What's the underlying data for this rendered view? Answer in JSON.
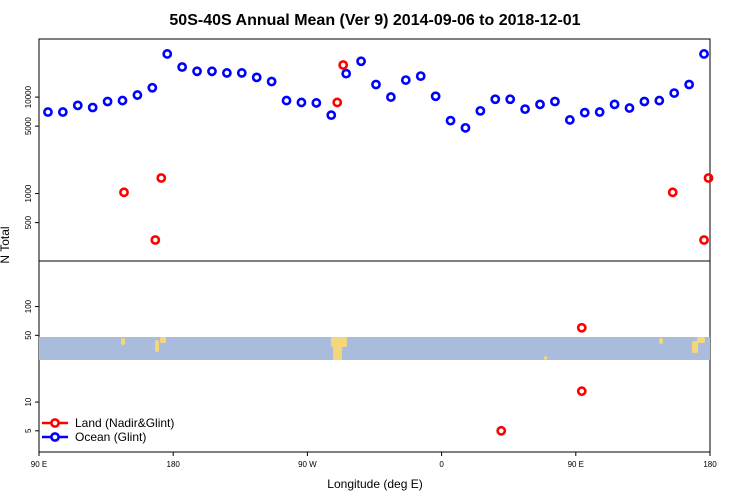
{
  "chart_data": {
    "type": "scatter",
    "title": "50S-40S Annual Mean (Ver 9)   2014-09-06 to 2018-12-01",
    "xlabel": "Longitude (deg E)",
    "ylabel": "N Total",
    "y_scale": "log",
    "grid": false,
    "legend_position": "bottom-left",
    "x_ticks": [
      {
        "value": 90,
        "label": "90 E"
      },
      {
        "value": 180,
        "label": "180"
      },
      {
        "value": 270,
        "label": "90 W"
      },
      {
        "value": 360,
        "label": "0"
      },
      {
        "value": 450,
        "label": "90 E"
      },
      {
        "value": 540,
        "label": "180"
      }
    ],
    "xlim": [
      90,
      540
    ],
    "panels": [
      {
        "name": "upper",
        "ylim": [
          200,
          40000
        ],
        "y_ticks": [
          {
            "value": 500,
            "label": "500"
          },
          {
            "value": 1000,
            "label": "1000"
          },
          {
            "value": 5000,
            "label": "5000"
          },
          {
            "value": 10000,
            "label": "10000"
          }
        ],
        "series": [
          {
            "name": "Ocean (Glint)",
            "color": "#0000ff",
            "points": [
              [
                96,
                7000
              ],
              [
                106,
                7000
              ],
              [
                116,
                8200
              ],
              [
                126,
                7800
              ],
              [
                136,
                9000
              ],
              [
                146,
                9200
              ],
              [
                156,
                10500
              ],
              [
                166,
                12500
              ],
              [
                176,
                28000
              ],
              [
                186,
                20500
              ],
              [
                196,
                18500
              ],
              [
                206,
                18500
              ],
              [
                216,
                17800
              ],
              [
                226,
                17800
              ],
              [
                236,
                16000
              ],
              [
                246,
                14500
              ],
              [
                256,
                9200
              ],
              [
                266,
                8800
              ],
              [
                276,
                8700
              ],
              [
                286,
                6500
              ],
              [
                296,
                17500
              ],
              [
                306,
                23500
              ],
              [
                316,
                13500
              ],
              [
                326,
                10000
              ],
              [
                336,
                15000
              ],
              [
                346,
                16500
              ],
              [
                356,
                10200
              ],
              [
                366,
                5700
              ],
              [
                376,
                4800
              ],
              [
                386,
                7200
              ],
              [
                396,
                9500
              ],
              [
                406,
                9500
              ],
              [
                416,
                7500
              ],
              [
                426,
                8400
              ],
              [
                436,
                9000
              ],
              [
                446,
                5800
              ],
              [
                456,
                6900
              ],
              [
                466,
                7000
              ],
              [
                476,
                8400
              ],
              [
                486,
                7700
              ],
              [
                496,
                9000
              ],
              [
                506,
                9200
              ],
              [
                516,
                11000
              ],
              [
                526,
                13500
              ],
              [
                536,
                28000
              ]
            ]
          },
          {
            "name": "Land (Nadir&Glint)",
            "color": "#ff0000",
            "points": [
              [
                147,
                1030
              ],
              [
                168,
                330
              ],
              [
                172,
                1450
              ],
              [
                290,
                8800
              ],
              [
                294,
                21500
              ],
              [
                515,
                1030
              ],
              [
                536,
                330
              ],
              [
                539,
                1450
              ]
            ]
          }
        ]
      },
      {
        "name": "lower",
        "ylim": [
          3,
          300
        ],
        "y_ticks": [
          {
            "value": 5,
            "label": "5"
          },
          {
            "value": 10,
            "label": "10"
          },
          {
            "value": 50,
            "label": "50"
          },
          {
            "value": 100,
            "label": "100"
          }
        ],
        "series": [
          {
            "name": "Land (Nadir&Glint)",
            "color": "#ff0000",
            "points": [
              [
                400,
                5
              ],
              [
                454,
                60
              ],
              [
                454,
                13
              ]
            ]
          }
        ]
      }
    ],
    "legend": [
      {
        "label": "Land (Nadir&Glint)",
        "color": "#ff0000"
      },
      {
        "label": "Ocean (Glint)",
        "color": "#0000ff"
      }
    ]
  },
  "map_strip": {
    "ocean_color": "#a9bcdc",
    "land_color": "#f5d67a"
  }
}
